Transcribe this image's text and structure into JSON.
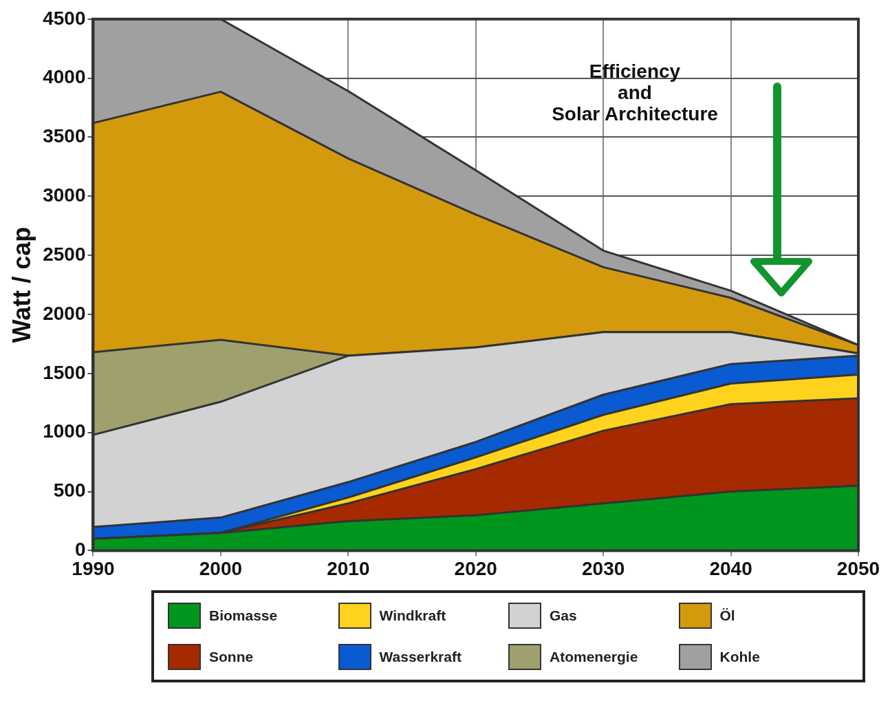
{
  "chart_data": {
    "type": "area",
    "stacked": true,
    "ylabel": "Watt / cap",
    "x": [
      1990,
      2000,
      2010,
      2020,
      2030,
      2040,
      2050
    ],
    "xlim": [
      1990,
      2050
    ],
    "xticks": [
      1990,
      2000,
      2010,
      2020,
      2030,
      2040,
      2050
    ],
    "ylim": [
      0,
      4500
    ],
    "yticks": [
      0,
      500,
      1000,
      1500,
      2000,
      2500,
      3000,
      3500,
      4000,
      4500
    ],
    "grid": true,
    "legend": "bottom",
    "series": [
      {
        "name": "Biomasse",
        "color": "#00961e",
        "values": [
          100,
          150,
          250,
          300,
          400,
          500,
          550
        ]
      },
      {
        "name": "Sonne",
        "color": "#a52a00",
        "values": [
          0,
          0,
          150,
          390,
          615,
          740,
          740
        ]
      },
      {
        "name": "Windkraft",
        "color": "#ffd21e",
        "values": [
          0,
          0,
          50,
          100,
          135,
          175,
          200
        ]
      },
      {
        "name": "Wasserkraft",
        "color": "#0a5ad2",
        "values": [
          100,
          130,
          130,
          130,
          170,
          165,
          160
        ]
      },
      {
        "name": "Gas",
        "color": "#d2d2d2",
        "values": [
          780,
          980,
          1070,
          800,
          530,
          270,
          20
        ]
      },
      {
        "name": "Atomenergie",
        "color": "#a0a06e",
        "values": [
          700,
          525,
          0,
          0,
          0,
          0,
          0
        ]
      },
      {
        "name": "Öl",
        "color": "#d49a0e",
        "values": [
          1940,
          2100,
          1670,
          1125,
          550,
          290,
          70
        ]
      },
      {
        "name": "Kohle",
        "color": "#a0a0a0",
        "values": [
          880,
          615,
          570,
          375,
          140,
          60,
          0
        ]
      }
    ],
    "annotations": [
      "Efficiency\nand\nSolar Architecture"
    ]
  }
}
